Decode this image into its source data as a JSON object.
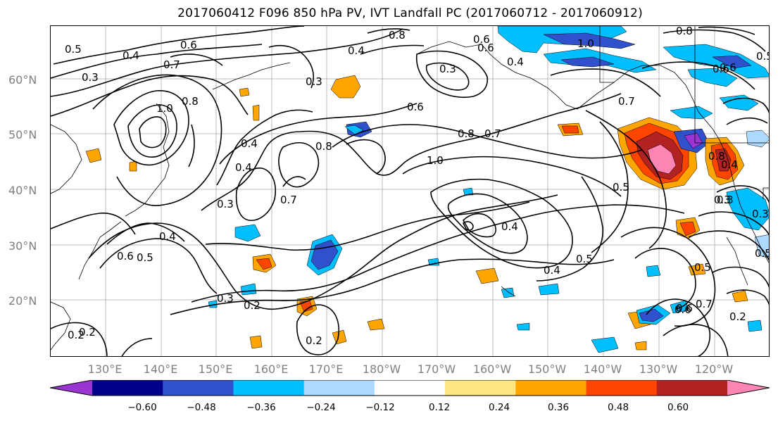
{
  "title": "2017060412 F096 850 hPa PV, IVT Landfall PC (2017060712 - 2017060912)",
  "lat_labels": [
    "60°N",
    "50°N",
    "40°N",
    "30°N",
    "20°N"
  ],
  "lon_labels": [
    "130°E",
    "140°E",
    "150°E",
    "160°E",
    "170°E",
    "180°W",
    "170°W",
    "160°W",
    "150°W",
    "140°W",
    "130°W",
    "120°W"
  ],
  "colorbar": {
    "colors": [
      "#9a35d1",
      "#00008b",
      "#3050cc",
      "#00bfff",
      "#add8ff",
      "#ffffff",
      "#ffe680",
      "#ffa500",
      "#ff4500",
      "#b22222",
      "#ff86b4"
    ],
    "tick_labels": [
      "−0.60",
      "−0.48",
      "−0.36",
      "−0.24",
      "−0.12",
      "0.12",
      "0.24",
      "0.36",
      "0.48",
      "0.60"
    ]
  },
  "contour_labels": [
    "0.5",
    "0.4",
    "0.6",
    "0.7",
    "0.3",
    "1.0",
    "0.8",
    "0.3",
    "0.4",
    "0.8",
    "0.6",
    "0.3",
    "0.6",
    "0.8",
    "1.0",
    "0.7",
    "0.8",
    "0.6",
    "1.0",
    "0.7",
    "0.8",
    "0.6",
    "0.4",
    "0.4",
    "0.3",
    "0.7",
    "0.4",
    "0.6",
    "0.5",
    "0.4",
    "0.3",
    "0.2",
    "0.2",
    "0.2",
    "0.4",
    "0.5",
    "0.5",
    "0.3",
    "0.4",
    "0.5",
    "0.6",
    "0.7",
    "0.5",
    "0.6",
    "0.5",
    "0.3",
    "0.8",
    "0.4",
    "0.3",
    "0.6",
    "0.2",
    "0.2"
  ]
}
